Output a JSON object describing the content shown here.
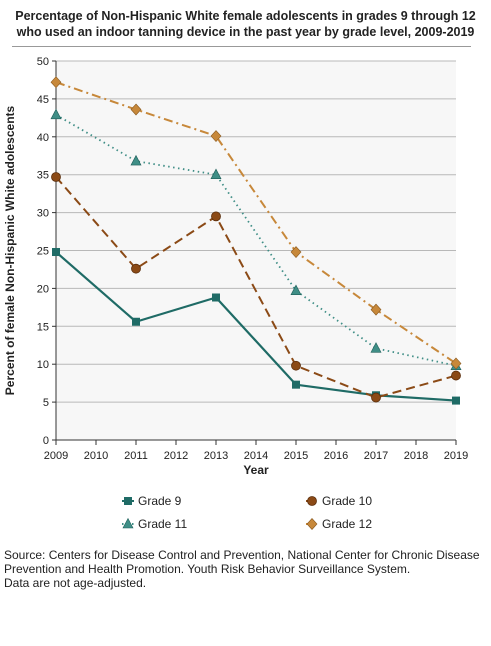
{
  "chart_data": {
    "type": "line",
    "title_line1": "Percentage of Non-Hispanic White female adolescents in grades 9 through 12",
    "title_line2": "who used an indoor tanning device in the past year by grade level, 2009-2019",
    "xlabel": "Year",
    "ylabel": "Percent of female Non-Hispanic White adolescents",
    "xlim": [
      2009,
      2019
    ],
    "ylim": [
      0,
      50
    ],
    "xticks": [
      "2009",
      "2010",
      "2011",
      "2012",
      "2013",
      "2014",
      "2015",
      "2016",
      "2017",
      "2018",
      "2019"
    ],
    "yticks": [
      "0",
      "5",
      "10",
      "15",
      "20",
      "25",
      "30",
      "35",
      "40",
      "45",
      "50"
    ],
    "grid": "horizontal",
    "legend_position": "bottom",
    "x": [
      2009,
      2011,
      2013,
      2015,
      2017,
      2019
    ],
    "series": [
      {
        "name": "Grade 9",
        "values": [
          24.8,
          15.6,
          18.8,
          7.3,
          5.9,
          5.2
        ],
        "color": "#1f6b66",
        "marker": "square",
        "dash": "solid"
      },
      {
        "name": "Grade 10",
        "values": [
          34.7,
          22.6,
          29.5,
          9.8,
          5.6,
          8.5
        ],
        "color": "#8b4a16",
        "marker": "circle",
        "dash": "dashed"
      },
      {
        "name": "Grade 11",
        "values": [
          42.9,
          36.8,
          35.0,
          19.7,
          12.1,
          9.8
        ],
        "color": "#3f8e86",
        "marker": "triangle",
        "dash": "dotted"
      },
      {
        "name": "Grade 12",
        "values": [
          47.2,
          43.6,
          40.1,
          24.8,
          17.2,
          10.1
        ],
        "color": "#c7883a",
        "marker": "diamond",
        "dash": "dashdot"
      }
    ]
  },
  "source_note": {
    "line1": "Source: Centers for Disease Control and Prevention, National Center for Chronic Disease",
    "line2": "Prevention and Health Promotion. Youth Risk Behavior Surveillance System.",
    "line3": "Data are not age-adjusted."
  },
  "colors": {
    "plot_background": "#f7f7f7",
    "gridline": "#b8b8b8"
  }
}
